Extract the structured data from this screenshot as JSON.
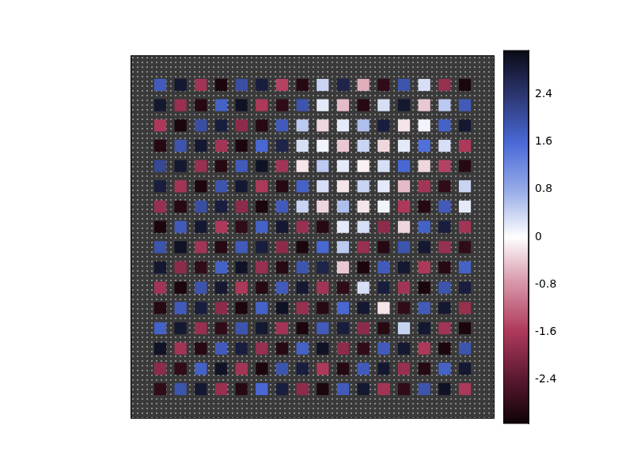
{
  "chart_data": {
    "type": "heatmap",
    "tick_labels": false,
    "cells": [
      [
        1.8,
        2.9,
        -1.7,
        -3.0,
        2.0,
        2.8,
        -1.5,
        -2.9,
        0.4,
        2.7,
        -0.6,
        -2.8,
        1.9,
        0.3,
        -1.8,
        -3.0
      ],
      [
        2.9,
        -1.8,
        -2.9,
        1.7,
        3.0,
        -1.6,
        -2.8,
        1.9,
        0.2,
        -0.5,
        -2.9,
        0.3,
        2.9,
        -0.4,
        0.5,
        1.8
      ],
      [
        -1.6,
        -3.0,
        2.0,
        2.8,
        -1.9,
        -2.9,
        1.8,
        0.5,
        -0.3,
        0.2,
        0.6,
        2.8,
        -0.2,
        0.1,
        1.7,
        2.9
      ],
      [
        -2.9,
        1.9,
        2.9,
        -1.7,
        -3.0,
        1.6,
        2.7,
        0.3,
        0.1,
        -0.4,
        0.4,
        -0.3,
        0.2,
        1.5,
        0.3,
        -1.6
      ],
      [
        2.1,
        2.9,
        -1.8,
        -2.9,
        1.8,
        3.0,
        -1.7,
        -0.2,
        0.5,
        0.2,
        -0.1,
        0.3,
        1.6,
        -0.3,
        -1.5,
        -2.9
      ],
      [
        2.8,
        -1.7,
        -3.0,
        1.9,
        2.9,
        -1.6,
        -2.9,
        1.7,
        0.3,
        -0.2,
        0.4,
        0.2,
        -0.5,
        -1.7,
        -2.8,
        0.4
      ],
      [
        -1.8,
        -2.9,
        2.0,
        2.8,
        -1.9,
        -3.0,
        1.8,
        0.4,
        -0.3,
        0.6,
        -0.2,
        0.1,
        -1.6,
        -2.9,
        1.8,
        0.2
      ],
      [
        -3.0,
        1.8,
        2.9,
        -1.6,
        -2.8,
        1.7,
        2.9,
        -1.8,
        -2.9,
        0.2,
        0.3,
        -1.9,
        -0.3,
        1.7,
        2.8,
        -1.7
      ],
      [
        1.9,
        3.0,
        -1.7,
        -2.9,
        1.8,
        2.8,
        -1.9,
        -3.0,
        1.6,
        0.5,
        -1.8,
        -2.9,
        1.9,
        2.9,
        -1.8,
        -2.8
      ],
      [
        2.9,
        -1.9,
        -2.8,
        1.7,
        3.0,
        -1.8,
        -2.9,
        1.9,
        2.7,
        -0.4,
        -3.0,
        1.8,
        2.9,
        -1.6,
        -2.9,
        1.7
      ],
      [
        -1.7,
        -3.0,
        1.9,
        2.9,
        -1.6,
        -2.9,
        1.8,
        2.9,
        -1.7,
        -2.8,
        0.3,
        2.8,
        -1.7,
        -3.0,
        1.9,
        2.8
      ],
      [
        -2.9,
        1.8,
        2.8,
        -1.9,
        -3.0,
        1.7,
        3.0,
        -1.8,
        -2.9,
        1.6,
        2.9,
        -0.2,
        -2.8,
        1.8,
        2.9,
        -1.8
      ],
      [
        1.7,
        2.9,
        -1.8,
        -2.8,
        1.9,
        2.9,
        -1.7,
        -3.0,
        1.8,
        2.8,
        -1.9,
        -2.9,
        0.4,
        2.9,
        -1.7,
        -3.0
      ],
      [
        3.0,
        -1.7,
        -2.9,
        1.8,
        2.8,
        -1.8,
        -2.9,
        1.7,
        3.0,
        -1.9,
        -2.8,
        1.8,
        2.9,
        -1.6,
        -3.0,
        1.9
      ],
      [
        -1.9,
        -2.8,
        1.7,
        3.0,
        -1.7,
        -3.0,
        1.9,
        2.8,
        -1.6,
        -2.9,
        1.8,
        2.9,
        -1.8,
        -2.9,
        1.7,
        2.9
      ],
      [
        -2.8,
        1.9,
        2.9,
        -1.8,
        -2.9,
        1.6,
        2.8,
        -1.9,
        -3.0,
        1.8,
        2.9,
        -1.7,
        -2.8,
        1.9,
        3.0,
        -1.6
      ]
    ],
    "colorbar": {
      "range": [
        -3.14,
        3.14
      ],
      "ticks": [
        -2.4,
        -1.6,
        -0.8,
        0,
        0.8,
        1.6,
        2.4
      ]
    }
  }
}
